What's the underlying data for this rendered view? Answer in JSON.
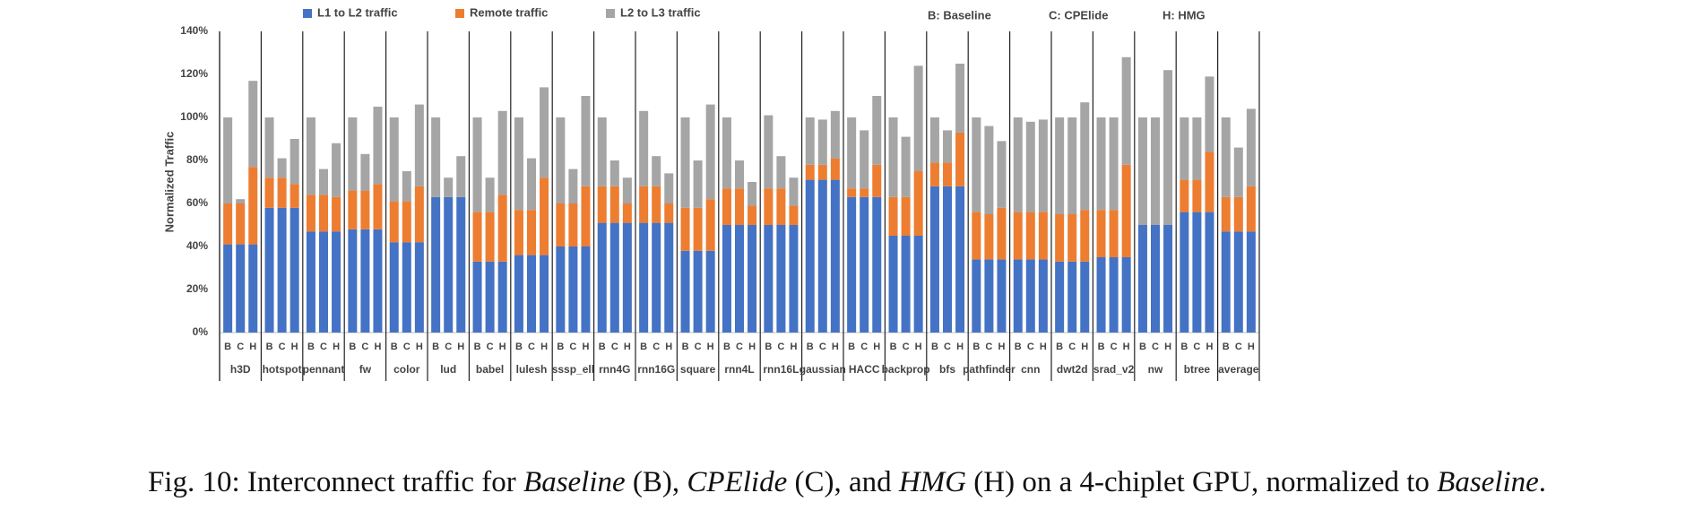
{
  "chart_data": {
    "type": "bar",
    "stacked": true,
    "ylabel": "Normalized Traffic",
    "ylim": [
      0,
      140
    ],
    "yticks": [
      "0%",
      "20%",
      "40%",
      "60%",
      "80%",
      "100%",
      "120%",
      "140%"
    ],
    "grid": false,
    "legend_position": "top",
    "legend": [
      {
        "name": "L1 to L2 traffic",
        "color": "#4472C4"
      },
      {
        "name": "Remote traffic",
        "color": "#ED7D31"
      },
      {
        "name": "L2 to L3 traffic",
        "color": "#A5A5A5"
      }
    ],
    "config_key": [
      "B: Baseline",
      "C: CPElide",
      "H: HMG"
    ],
    "config_labels": [
      "B",
      "C",
      "H"
    ],
    "groups": [
      {
        "name": "h3D",
        "bars": [
          [
            41,
            19,
            40
          ],
          [
            41,
            19,
            2
          ],
          [
            41,
            36,
            40
          ]
        ]
      },
      {
        "name": "hotspot",
        "bars": [
          [
            58,
            14,
            28
          ],
          [
            58,
            14,
            9
          ],
          [
            58,
            11,
            21
          ]
        ]
      },
      {
        "name": "pennant",
        "bars": [
          [
            47,
            17,
            36
          ],
          [
            47,
            17,
            12
          ],
          [
            47,
            16,
            25
          ]
        ]
      },
      {
        "name": "fw",
        "bars": [
          [
            48,
            18,
            34
          ],
          [
            48,
            18,
            17
          ],
          [
            48,
            21,
            36
          ]
        ]
      },
      {
        "name": "color",
        "bars": [
          [
            42,
            19,
            39
          ],
          [
            42,
            19,
            14
          ],
          [
            42,
            26,
            38
          ]
        ]
      },
      {
        "name": "lud",
        "bars": [
          [
            63,
            0,
            37
          ],
          [
            63,
            0,
            9
          ],
          [
            63,
            0,
            19
          ]
        ]
      },
      {
        "name": "babel",
        "bars": [
          [
            33,
            23,
            44
          ],
          [
            33,
            23,
            16
          ],
          [
            33,
            31,
            39
          ]
        ]
      },
      {
        "name": "lulesh",
        "bars": [
          [
            36,
            21,
            43
          ],
          [
            36,
            21,
            24
          ],
          [
            36,
            36,
            42
          ]
        ]
      },
      {
        "name": "sssp_ell",
        "bars": [
          [
            40,
            20,
            40
          ],
          [
            40,
            20,
            16
          ],
          [
            40,
            28,
            42
          ]
        ]
      },
      {
        "name": "rnn4G",
        "bars": [
          [
            51,
            17,
            32
          ],
          [
            51,
            17,
            12
          ],
          [
            51,
            9,
            12
          ]
        ]
      },
      {
        "name": "rnn16G",
        "bars": [
          [
            51,
            17,
            35
          ],
          [
            51,
            17,
            14
          ],
          [
            51,
            9,
            14
          ]
        ]
      },
      {
        "name": "square",
        "bars": [
          [
            38,
            20,
            42
          ],
          [
            38,
            20,
            22
          ],
          [
            38,
            24,
            44
          ]
        ]
      },
      {
        "name": "rnn4L",
        "bars": [
          [
            50,
            17,
            33
          ],
          [
            50,
            17,
            13
          ],
          [
            50,
            9,
            11
          ]
        ]
      },
      {
        "name": "rnn16L",
        "bars": [
          [
            50,
            17,
            34
          ],
          [
            50,
            17,
            15
          ],
          [
            50,
            9,
            13
          ]
        ]
      },
      {
        "name": "gaussian",
        "bars": [
          [
            71,
            7,
            22
          ],
          [
            71,
            7,
            21
          ],
          [
            71,
            10,
            22
          ]
        ]
      },
      {
        "name": "HACC",
        "bars": [
          [
            63,
            4,
            33
          ],
          [
            63,
            4,
            27
          ],
          [
            63,
            15,
            32
          ]
        ]
      },
      {
        "name": "backprop",
        "bars": [
          [
            45,
            18,
            37
          ],
          [
            45,
            18,
            28
          ],
          [
            45,
            30,
            49
          ]
        ]
      },
      {
        "name": "bfs",
        "bars": [
          [
            68,
            11,
            21
          ],
          [
            68,
            11,
            15
          ],
          [
            68,
            25,
            32
          ]
        ]
      },
      {
        "name": "pathfinder",
        "bars": [
          [
            34,
            22,
            44
          ],
          [
            34,
            21,
            41
          ],
          [
            34,
            24,
            31
          ]
        ]
      },
      {
        "name": "cnn",
        "bars": [
          [
            34,
            22,
            44
          ],
          [
            34,
            22,
            42
          ],
          [
            34,
            22,
            43
          ]
        ]
      },
      {
        "name": "dwt2d",
        "bars": [
          [
            33,
            22,
            45
          ],
          [
            33,
            22,
            45
          ],
          [
            33,
            24,
            50
          ]
        ]
      },
      {
        "name": "srad_v2",
        "bars": [
          [
            35,
            22,
            43
          ],
          [
            35,
            22,
            43
          ],
          [
            35,
            43,
            50
          ]
        ]
      },
      {
        "name": "nw",
        "bars": [
          [
            50,
            0,
            50
          ],
          [
            50,
            0,
            50
          ],
          [
            50,
            0,
            72
          ]
        ]
      },
      {
        "name": "btree",
        "bars": [
          [
            56,
            15,
            29
          ],
          [
            56,
            15,
            29
          ],
          [
            56,
            28,
            35
          ]
        ]
      },
      {
        "name": "average",
        "bars": [
          [
            47,
            16,
            37
          ],
          [
            47,
            16,
            23
          ],
          [
            47,
            21,
            36
          ]
        ]
      }
    ]
  },
  "caption": {
    "prefix": "Fig. 10: Interconnect traffic for ",
    "baseline": "Baseline",
    "b": " (B), ",
    "cpelide": "CPElide",
    "c": " (C), and ",
    "hmg": "HMG",
    "h": " (H) on a 4-chiplet GPU, normalized to ",
    "baseline2": "Baseline",
    "end": "."
  }
}
